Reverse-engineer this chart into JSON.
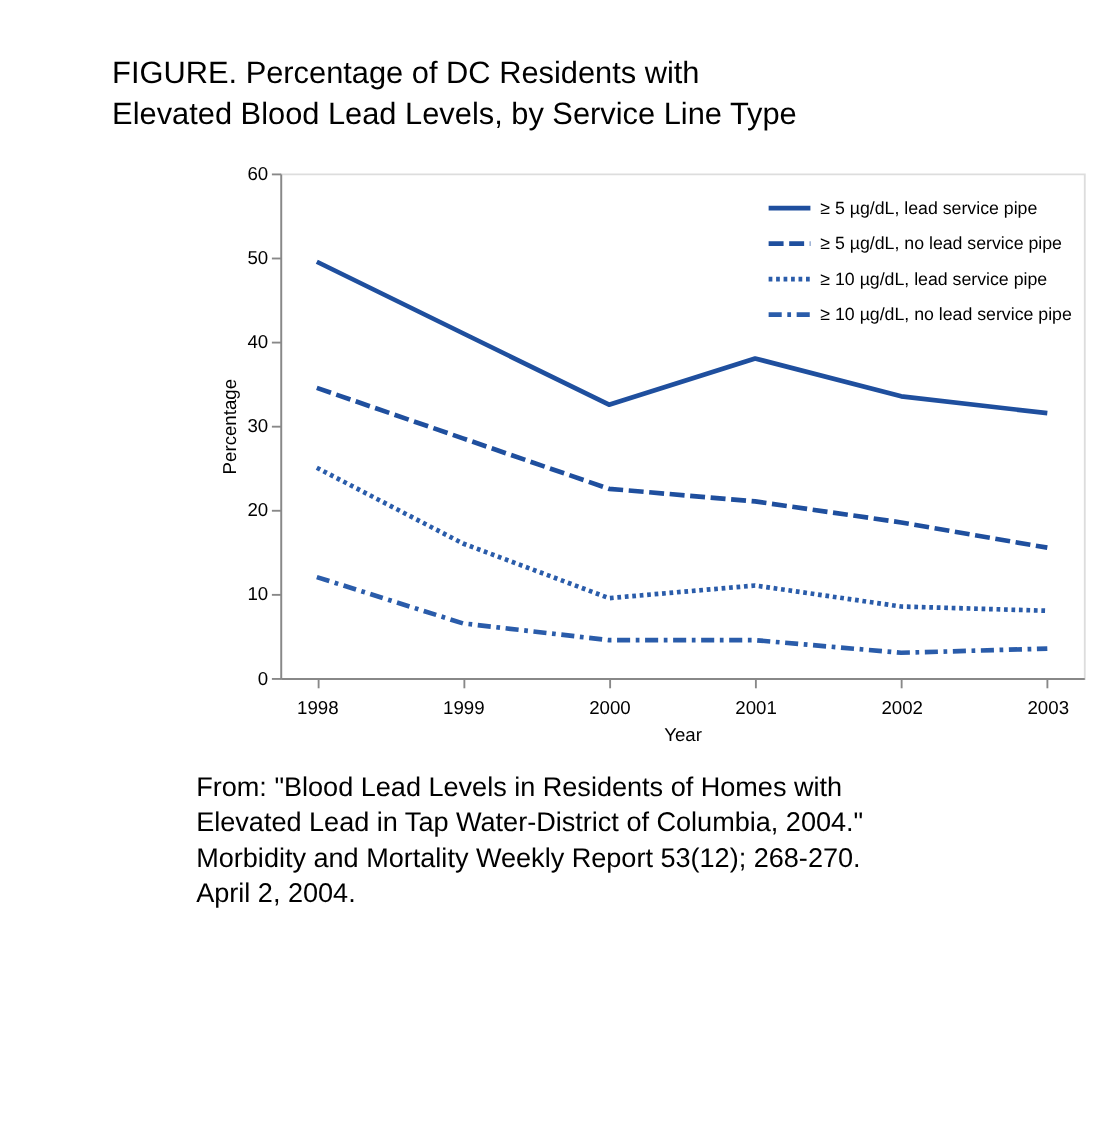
{
  "chart_data": {
    "type": "line",
    "title": "FIGURE. Percentage of DC Residents with\nElevated Blood Lead Levels, by Service Line Type",
    "xlabel": "Year",
    "ylabel": "Percentage",
    "categories": [
      "1998",
      "1999",
      "2000",
      "2001",
      "2002",
      "2003"
    ],
    "series": [
      {
        "name": "≥ 5 µg/dL, lead service pipe",
        "color": "#1f4f9e",
        "line_style": "solid",
        "values": [
          49.5,
          41,
          32.5,
          38,
          33.5,
          31.5
        ]
      },
      {
        "name": "≥ 5 µg/dL, no lead service pipe",
        "color": "#1f4f9e",
        "line_style": "dashed",
        "values": [
          34.5,
          28.5,
          22.5,
          21,
          18.5,
          15.5
        ]
      },
      {
        "name": "≥ 10 µg/dL, lead service pipe",
        "color": "#2a5caa",
        "line_style": "dotted",
        "values": [
          25,
          16,
          9.5,
          11,
          8.5,
          8
        ]
      },
      {
        "name": "≥ 10 µg/dL, no lead service pipe",
        "color": "#2a5caa",
        "line_style": "dashdot",
        "values": [
          12,
          6.5,
          4.5,
          4.5,
          3,
          3.5
        ]
      }
    ],
    "ylim": [
      0,
      60
    ],
    "yticks": [
      0,
      10,
      20,
      30,
      40,
      50,
      60
    ],
    "grid": false,
    "legend": "top right",
    "marker": "none",
    "annotations": [
      "From: \"Blood Lead Levels in Residents of Homes with\nElevated Lead in Tap Water-District of Columbia, 2004.\"\nMorbidity and Mortality Weekly Report 53(12); 268-270.\nApril 2, 2004."
    ]
  }
}
